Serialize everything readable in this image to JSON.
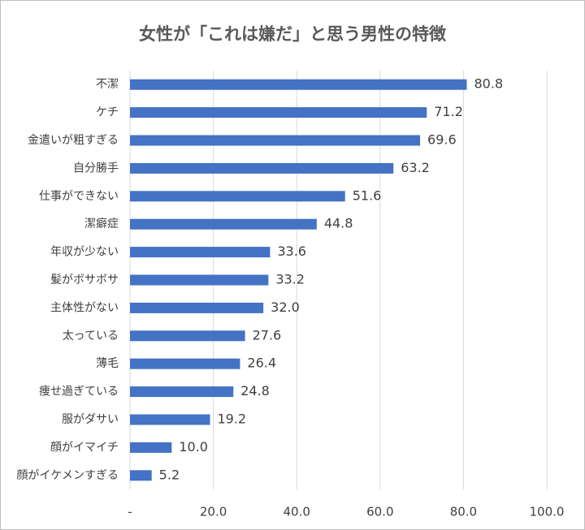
{
  "chart_data": {
    "type": "bar",
    "orientation": "horizontal",
    "title": "女性が「これは嫌だ」と思う男性の特徴",
    "categories": [
      "不潔",
      "ケチ",
      "金遣いが粗すぎる",
      "自分勝手",
      "仕事ができない",
      "潔癖症",
      "年収が少ない",
      "髪がボサボサ",
      "主体性がない",
      "太っている",
      "薄毛",
      "痩せ過ぎている",
      "服がダサい",
      "顔がイマイチ",
      "顔がイケメンすぎる"
    ],
    "values": [
      80.8,
      71.2,
      69.6,
      63.2,
      51.6,
      44.8,
      33.6,
      33.2,
      32.0,
      27.6,
      26.4,
      24.8,
      19.2,
      10.0,
      5.2
    ],
    "value_labels": [
      "80.8",
      "71.2",
      "69.6",
      "63.2",
      "51.6",
      "44.8",
      "33.6",
      "33.2",
      "32.0",
      "27.6",
      "26.4",
      "24.8",
      "19.2",
      "10.0",
      "5.2"
    ],
    "color": "#4472c4",
    "xlim": [
      0,
      100
    ],
    "xticks": [
      {
        "value": 0,
        "label": "-"
      },
      {
        "value": 20,
        "label": "20.0"
      },
      {
        "value": 40,
        "label": "40.0"
      },
      {
        "value": 60,
        "label": "60.0"
      },
      {
        "value": 80,
        "label": "80.0"
      },
      {
        "value": 100,
        "label": "100.0"
      }
    ],
    "grid": true
  }
}
